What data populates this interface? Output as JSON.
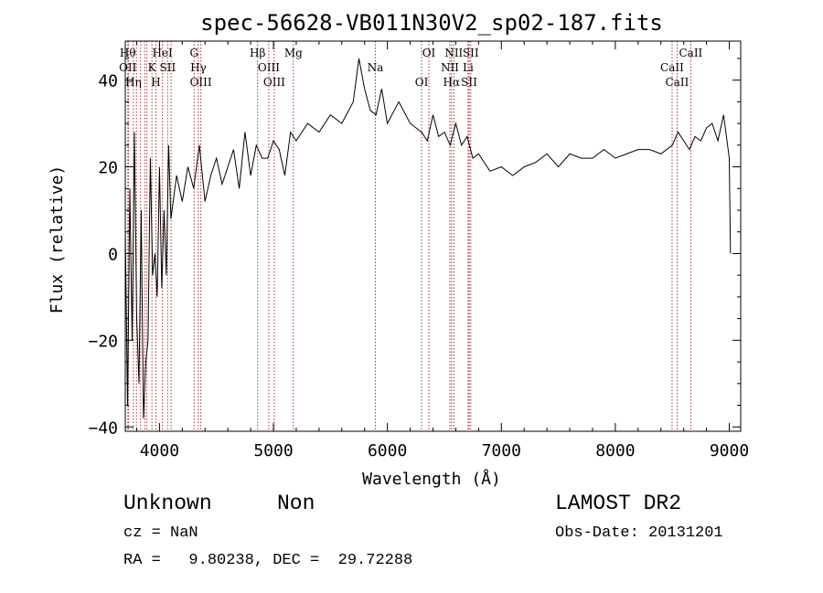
{
  "chart_data": {
    "type": "line",
    "title": "spec-56628-VB011N30V2_sp02-187.fits",
    "xlabel": "Wavelength (Å)",
    "ylabel": "Flux (relative)",
    "xlim": [
      3700,
      9100
    ],
    "ylim": [
      -41,
      49
    ],
    "x_ticks": [
      4000,
      5000,
      6000,
      7000,
      8000,
      9000
    ],
    "y_ticks": [
      -40,
      -20,
      0,
      20,
      40
    ],
    "line_color": "#000000",
    "marker_color": "#b03030",
    "series": [
      {
        "x": [
          3700,
          3720,
          3740,
          3760,
          3780,
          3800,
          3820,
          3840,
          3860,
          3880,
          3900,
          3920,
          3940,
          3960,
          3980,
          4000,
          4020,
          4040,
          4060,
          4080,
          4100,
          4150,
          4200,
          4250,
          4300,
          4350,
          4400,
          4450,
          4500,
          4550,
          4600,
          4650,
          4700,
          4750,
          4800,
          4850,
          4900,
          4950,
          5000,
          5050,
          5100,
          5150,
          5200,
          5300,
          5400,
          5500,
          5600,
          5700,
          5750,
          5800,
          5850,
          5900,
          5950,
          6000,
          6100,
          6200,
          6300,
          6350,
          6400,
          6450,
          6500,
          6550,
          6600,
          6650,
          6700,
          6750,
          6800,
          6900,
          7000,
          7100,
          7200,
          7300,
          7400,
          7500,
          7600,
          7700,
          7800,
          7900,
          8000,
          8100,
          8200,
          8300,
          8400,
          8500,
          8550,
          8600,
          8650,
          8700,
          8750,
          8800,
          8850,
          8900,
          8950,
          9000,
          9010
        ],
        "y": [
          5,
          -35,
          15,
          -20,
          28,
          -15,
          -30,
          10,
          -38,
          -25,
          -20,
          22,
          -5,
          0,
          -10,
          20,
          -8,
          10,
          -5,
          25,
          8,
          18,
          12,
          20,
          15,
          25,
          12,
          18,
          22,
          16,
          20,
          24,
          15,
          28,
          18,
          25,
          22,
          22,
          26,
          24,
          18,
          28,
          26,
          30,
          28,
          32,
          30,
          35,
          45,
          38,
          33,
          32,
          38,
          30,
          35,
          30,
          28,
          26,
          32,
          27,
          28,
          25,
          30,
          25,
          27,
          22,
          23,
          19,
          20,
          18,
          20,
          21,
          23,
          20,
          23,
          22,
          22,
          24,
          22,
          23,
          24,
          24,
          23,
          25,
          28,
          26,
          24,
          27,
          26,
          29,
          30,
          26,
          32,
          22,
          0
        ]
      }
    ],
    "lines": [
      {
        "x": 3722,
        "labels": [
          "Hθ",
          "OII"
        ]
      },
      {
        "x": 3728,
        "labels": []
      },
      {
        "x": 3771,
        "labels": [
          "Hη"
        ]
      },
      {
        "x": 3798,
        "labels": []
      },
      {
        "x": 3835,
        "labels": []
      },
      {
        "x": 3870,
        "labels": []
      },
      {
        "x": 3889,
        "labels": []
      },
      {
        "x": 3934,
        "labels": [
          "K"
        ]
      },
      {
        "x": 3969,
        "labels": [
          "H"
        ]
      },
      {
        "x": 4026,
        "labels": [
          "HeI"
        ]
      },
      {
        "x": 4072,
        "labels": [
          "SII"
        ]
      },
      {
        "x": 4102,
        "labels": []
      },
      {
        "x": 4304,
        "labels": [
          "G"
        ]
      },
      {
        "x": 4341,
        "labels": [
          "Hγ"
        ]
      },
      {
        "x": 4363,
        "labels": [
          "OIII"
        ]
      },
      {
        "x": 4861,
        "labels": [
          "Hβ"
        ]
      },
      {
        "x": 4959,
        "labels": [
          "OIII"
        ]
      },
      {
        "x": 5007,
        "labels": [
          "OIII"
        ]
      },
      {
        "x": 5175,
        "labels": [
          "Mg"
        ]
      },
      {
        "x": 5894,
        "labels": [
          "Na"
        ]
      },
      {
        "x": 6300,
        "labels": [
          "OI"
        ]
      },
      {
        "x": 6364,
        "labels": [
          "OI"
        ]
      },
      {
        "x": 6548,
        "labels": [
          "NII"
        ]
      },
      {
        "x": 6563,
        "labels": [
          "Hα"
        ]
      },
      {
        "x": 6583,
        "labels": [
          "NII"
        ]
      },
      {
        "x": 6708,
        "labels": [
          "Li"
        ]
      },
      {
        "x": 6717,
        "labels": [
          "SII"
        ]
      },
      {
        "x": 6731,
        "labels": [
          "SII"
        ]
      },
      {
        "x": 8498,
        "labels": [
          "CaII"
        ]
      },
      {
        "x": 8542,
        "labels": [
          "CaII"
        ]
      },
      {
        "x": 8662,
        "labels": [
          "CaII"
        ]
      }
    ]
  },
  "info": {
    "class": "Unknown",
    "subclass": "Non",
    "survey": "LAMOST DR2",
    "cz": "cz = NaN",
    "obs_date": "Obs-Date: 20131201",
    "radec": "RA =   9.80238, DEC =  29.72288"
  }
}
